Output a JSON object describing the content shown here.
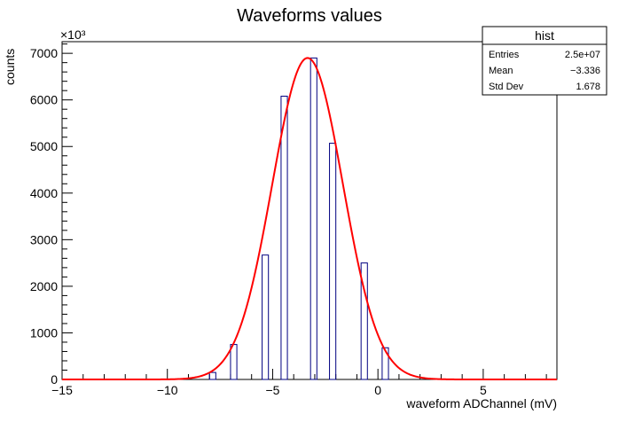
{
  "chart_data": {
    "type": "bar",
    "title": "Waveforms values",
    "xlabel": "waveform ADChannel (mV)",
    "ylabel": "counts",
    "y_multiplier": "×10³",
    "xlim": [
      -15,
      8.5
    ],
    "ylim": [
      0,
      7250
    ],
    "x_ticks": [
      -15,
      -10,
      -5,
      0,
      5
    ],
    "x_tick_labels": [
      "−15",
      "−10",
      "−5",
      "0",
      "5"
    ],
    "y_ticks": [
      0,
      1000,
      2000,
      3000,
      4000,
      5000,
      6000,
      7000
    ],
    "y_tick_labels": [
      "0",
      "1000",
      "2000",
      "3000",
      "4000",
      "5000",
      "6000",
      "7000"
    ],
    "histogram": {
      "bin_width": 0.3,
      "bin_lows": [
        -8.0,
        -7.0,
        -5.5,
        -4.6,
        -3.2,
        -2.3,
        -0.8,
        0.2
      ],
      "values": [
        150,
        750,
        2670,
        6080,
        6900,
        5070,
        2500,
        680
      ],
      "color": "#000080"
    },
    "fit": {
      "type": "gaussian",
      "amplitude": 6900,
      "mean": -3.34,
      "sigma": 1.68,
      "color": "#ff0000"
    },
    "legend_position": "top-right"
  },
  "stats_box": {
    "title": "hist",
    "rows": [
      {
        "label": "Entries",
        "value": "2.5e+07"
      },
      {
        "label": "Mean",
        "value": "−3.336"
      },
      {
        "label": "Std Dev",
        "value": "1.678"
      }
    ]
  }
}
